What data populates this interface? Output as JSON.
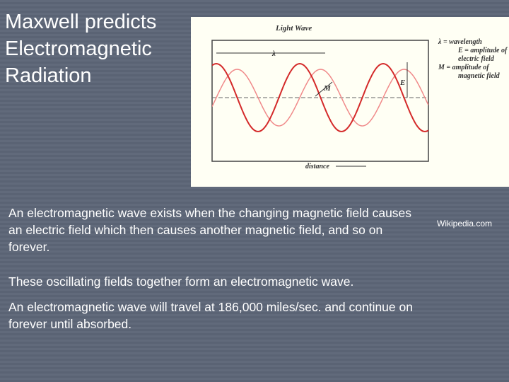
{
  "title": "Maxwell predicts Electromagnetic Radiation",
  "diagram": {
    "title": "Light Wave",
    "wavelength_symbol": "λ",
    "e_symbol": "E",
    "m_symbol": "M",
    "x_label": "distance",
    "legend": [
      "λ = wavelength",
      "E = amplitude of",
      "electric field",
      "M = amplitude of",
      "magnetic field"
    ]
  },
  "credit": "Wikipedia.com",
  "paragraphs": [
    "An electromagnetic wave exists when the changing magnetic field causes an electric field which then causes another magnetic field, and so on forever.",
    "These oscillating fields together form an electromagnetic wave.",
    "An electromagnetic wave will travel at 186,000 miles/sec. and continue on forever until absorbed."
  ]
}
